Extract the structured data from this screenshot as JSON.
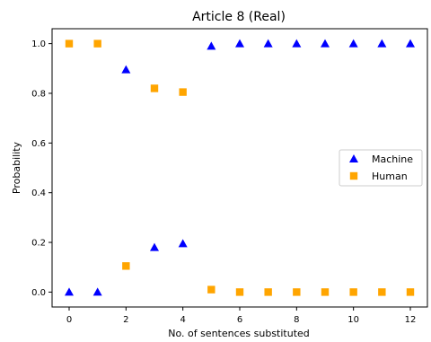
{
  "chart_data": {
    "type": "scatter",
    "title": "Article 8 (Real)",
    "xlabel": "No. of sentences substituted",
    "ylabel": "Probability",
    "x": [
      0,
      1,
      2,
      3,
      4,
      5,
      6,
      7,
      8,
      9,
      10,
      11,
      12
    ],
    "xlim": [
      -0.6,
      12.6
    ],
    "ylim": [
      -0.06,
      1.06
    ],
    "xticks": [
      0,
      2,
      4,
      6,
      8,
      10,
      12
    ],
    "yticks": [
      0.0,
      0.2,
      0.4,
      0.6,
      0.8,
      1.0
    ],
    "xtick_labels": [
      "0",
      "2",
      "4",
      "6",
      "8",
      "10",
      "12"
    ],
    "ytick_labels": [
      "0.0",
      "0.2",
      "0.4",
      "0.6",
      "0.8",
      "1.0"
    ],
    "series": [
      {
        "name": "Machine",
        "marker": "triangle",
        "color": "#0000ff",
        "values": [
          0.0,
          0.0,
          0.895,
          0.18,
          0.195,
          0.99,
          1.0,
          1.0,
          1.0,
          1.0,
          1.0,
          1.0,
          1.0
        ]
      },
      {
        "name": "Human",
        "marker": "square",
        "color": "#ffa500",
        "values": [
          1.0,
          1.0,
          0.105,
          0.82,
          0.805,
          0.01,
          0.0,
          0.0,
          0.0,
          0.0,
          0.0,
          0.0,
          0.0
        ]
      }
    ],
    "legend": {
      "position": "center-right"
    },
    "grid": false
  }
}
